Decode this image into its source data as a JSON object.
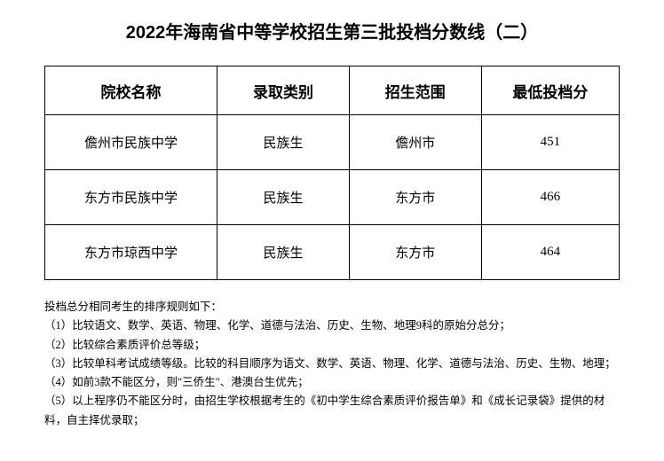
{
  "title": "2022年海南省中等学校招生第三批投档分数线（二）",
  "table": {
    "type": "table",
    "columns": [
      "院校名称",
      "录取类别",
      "招生范围",
      "最低投档分"
    ],
    "rows": [
      [
        "儋州市民族中学",
        "民族生",
        "儋州市",
        "451"
      ],
      [
        "东方市民族中学",
        "民族生",
        "东方市",
        "466"
      ],
      [
        "东方市琼西中学",
        "民族生",
        "东方市",
        "464"
      ]
    ],
    "border_color": "#000000",
    "background_color": "#ffffff",
    "header_fontsize": 17,
    "cell_fontsize": 15,
    "col_widths": [
      "30%",
      "23%",
      "23%",
      "24%"
    ]
  },
  "notes": {
    "intro": "投档总分相同考生的排序规则如下：",
    "rules": [
      "（1）比较语文、数学、英语、物理、化学、道德与法治、历史、生物、地理9科的原始分总分；",
      "（2）比较综合素质评价总等级；",
      "（3）比较单科考试成绩等级。比较的科目顺序为语文、数学、英语、物理、化学、道德与法治、历史、生物、地理；",
      "（4）如前3款不能区分，则\"三侨生\"、港澳台生优先；",
      "（5）以上程序仍不能区分时，由招生学校根据考生的《初中学生综合素质评价报告单》和《成长记录袋》提供的材料，自主择优录取；"
    ]
  }
}
